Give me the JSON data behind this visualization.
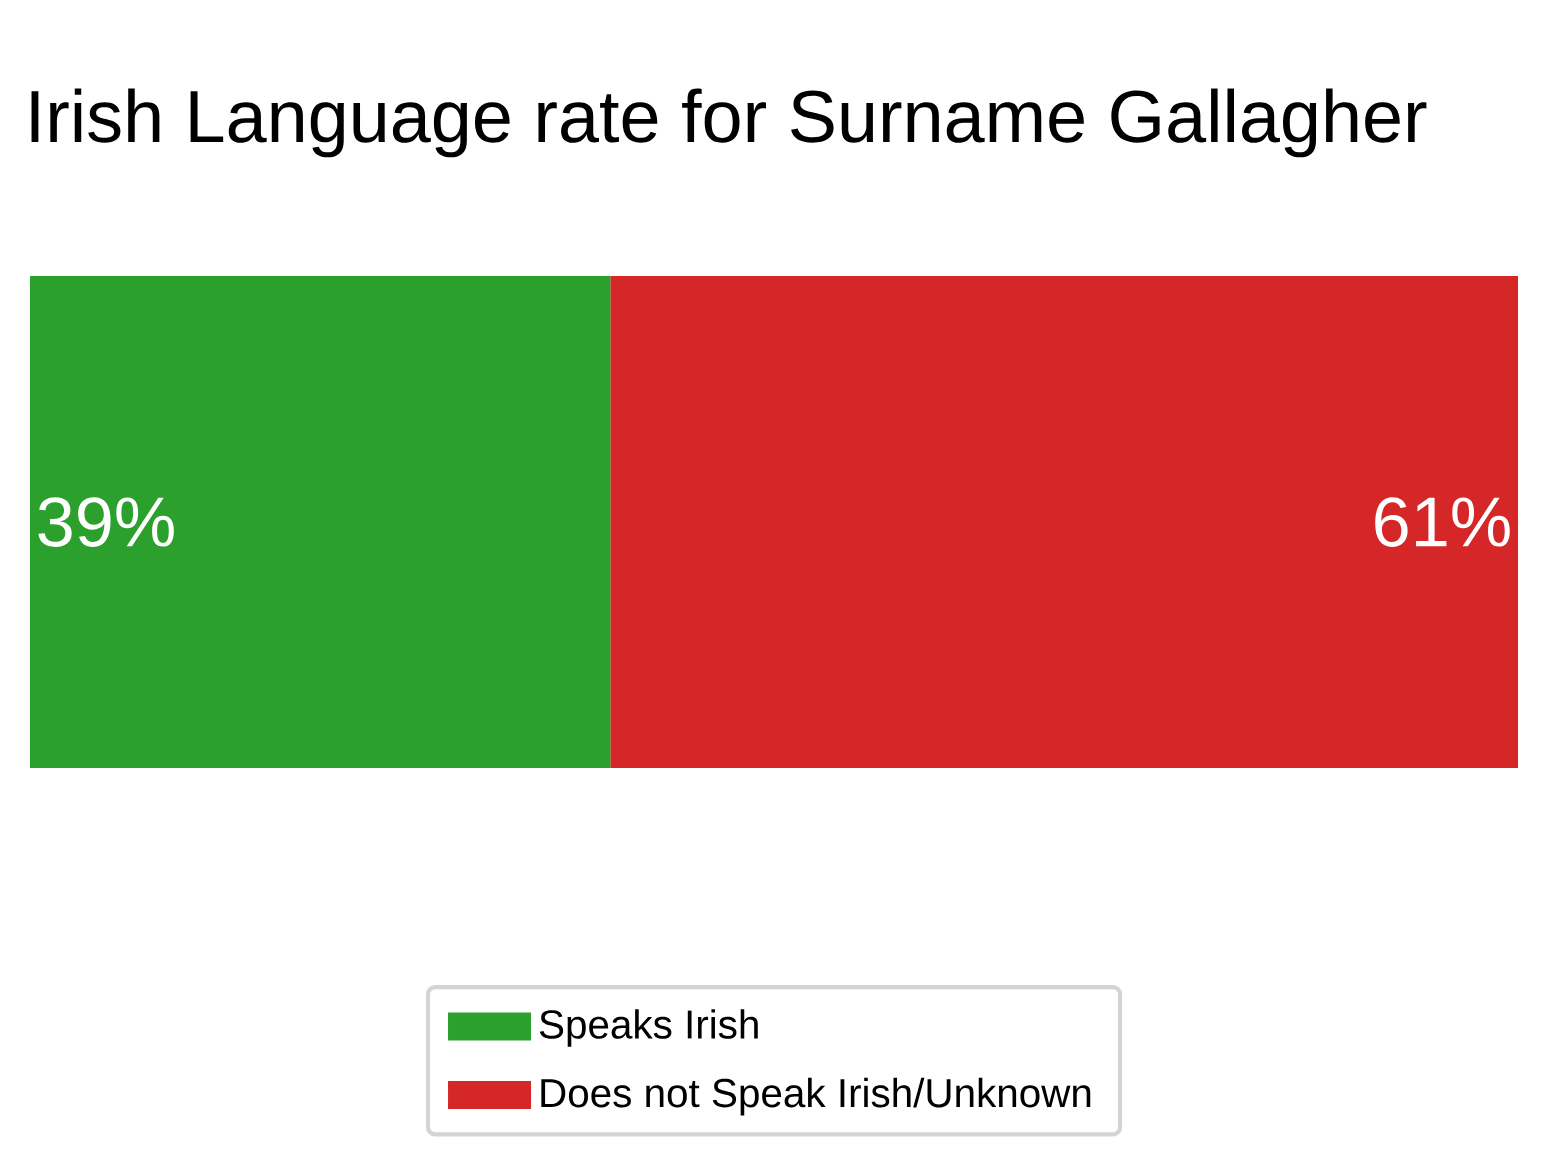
{
  "chart_data": {
    "type": "bar",
    "orientation": "horizontal",
    "stacked": true,
    "title": "Irish Language rate for Surname Gallagher",
    "categories": [
      null
    ],
    "series": [
      {
        "name": "Speaks Irish",
        "color": "#2ca02c",
        "values": [
          39
        ],
        "value_labels": [
          "39%"
        ]
      },
      {
        "name": "Does not Speak Irish/Unknown",
        "color": "#d62728",
        "values": [
          61
        ],
        "value_labels": [
          "61%"
        ]
      }
    ],
    "legend": "bottom"
  }
}
